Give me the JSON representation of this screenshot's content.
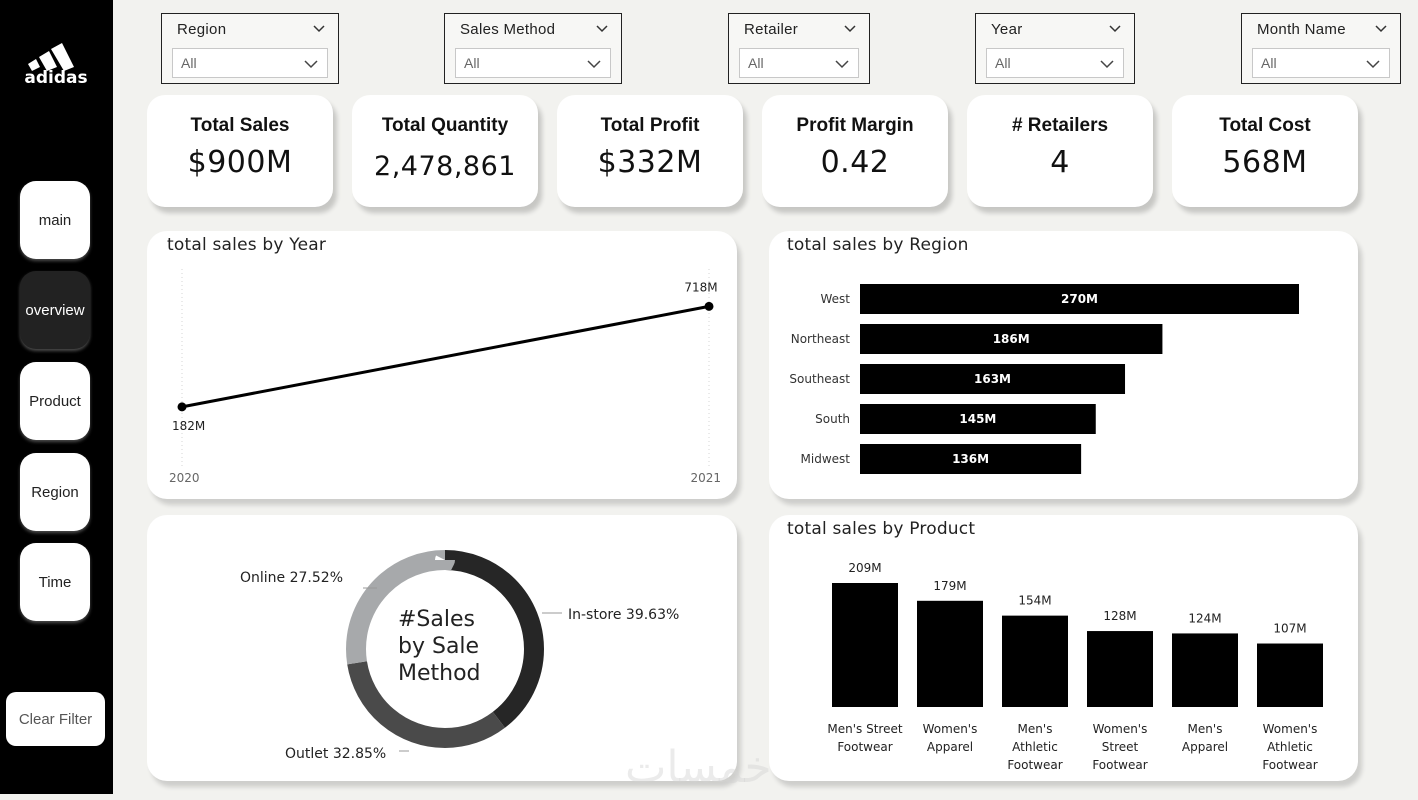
{
  "brand": {
    "logo_text": "adidas"
  },
  "nav": {
    "items": [
      {
        "label": "main",
        "active": false
      },
      {
        "label": "overview",
        "active": true
      },
      {
        "label": "Product",
        "active": false
      },
      {
        "label": "Region",
        "active": false
      },
      {
        "label": "Time",
        "active": false
      }
    ],
    "clear_filter_label": "Clear Filter"
  },
  "slicers": [
    {
      "title": "Region",
      "value": "All"
    },
    {
      "title": "Sales Method",
      "value": "All"
    },
    {
      "title": "Retailer",
      "value": "All"
    },
    {
      "title": "Year",
      "value": "All"
    },
    {
      "title": "Month Name",
      "value": "All"
    }
  ],
  "kpis": [
    {
      "label": "Total Sales",
      "value": "$900M"
    },
    {
      "label": "Total Quantity",
      "value": "2,478,861"
    },
    {
      "label": "Total Profit",
      "value": "$332M"
    },
    {
      "label": "Profit Margin",
      "value": "0.42"
    },
    {
      "label": "# Retailers",
      "value": "4"
    },
    {
      "label": "Total Cost",
      "value": "568M"
    }
  ],
  "chart_data": [
    {
      "type": "line",
      "title": "total sales by Year",
      "x": [
        "2020",
        "2021"
      ],
      "values": [
        182,
        718
      ],
      "value_labels": [
        "182M",
        "718M"
      ],
      "unit": "M"
    },
    {
      "type": "bar",
      "orientation": "horizontal",
      "title": "total sales by Region",
      "categories": [
        "West",
        "Northeast",
        "Southeast",
        "South",
        "Midwest"
      ],
      "values": [
        270,
        186,
        163,
        145,
        136
      ],
      "value_labels": [
        "270M",
        "186M",
        "163M",
        "145M",
        "136M"
      ],
      "unit": "M"
    },
    {
      "type": "pie",
      "subtype": "donut",
      "center_label": "#Sales by Sale Method",
      "center_lines": [
        "#Sales",
        "by Sale",
        "Method"
      ],
      "categories": [
        "In-store",
        "Outlet",
        "Online"
      ],
      "values": [
        39.63,
        32.85,
        27.52
      ],
      "slice_labels": [
        "In-store 39.63%",
        "Outlet 32.85%",
        "Online 27.52%"
      ],
      "colors": [
        "#262626",
        "#4a4a4a",
        "#a7a9ab"
      ]
    },
    {
      "type": "bar",
      "orientation": "vertical",
      "title": "total sales by Product",
      "categories": [
        "Men's Street Footwear",
        "Women's Apparel",
        "Men's Athletic Footwear",
        "Women's Street Footwear",
        "Men's Apparel",
        "Women's Athletic Footwear"
      ],
      "category_lines": [
        [
          "Men's Street",
          "Footwear"
        ],
        [
          "Women's",
          "Apparel"
        ],
        [
          "Men's",
          "Athletic",
          "Footwear"
        ],
        [
          "Women's",
          "Street",
          "Footwear"
        ],
        [
          "Men's",
          "Apparel"
        ],
        [
          "Women's",
          "Athletic",
          "Footwear"
        ]
      ],
      "values": [
        209,
        179,
        154,
        128,
        124,
        107
      ],
      "value_labels": [
        "209M",
        "179M",
        "154M",
        "128M",
        "124M",
        "107M"
      ],
      "unit": "M"
    }
  ],
  "watermark": "خمسات"
}
